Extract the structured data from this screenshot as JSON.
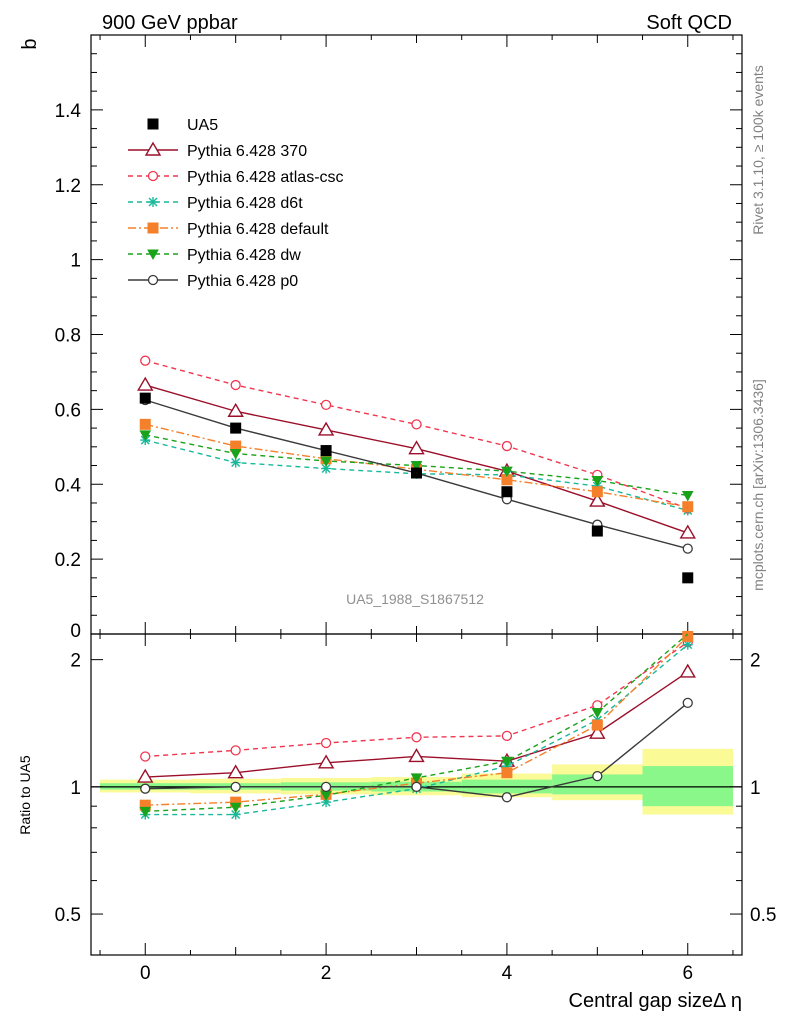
{
  "header": {
    "left": "900 GeV ppbar",
    "right": "Soft QCD"
  },
  "side_labels": {
    "rivet": "Rivet 3.1.10, ≥ 100k events",
    "mcplots": "mcplots.cern.ch [arXiv:1306.3436]"
  },
  "analysis_id": "UA5_1988_S1867512",
  "chart_data": [
    {
      "type": "line",
      "title": "",
      "xlabel": "Central gap sizeΔ η",
      "ylabel": "b",
      "xlim": [
        -0.6,
        6.6
      ],
      "ylim": [
        0,
        1.6
      ],
      "x_ticks": [
        0,
        2,
        4,
        6
      ],
      "y_ticks": [
        0.2,
        0.4,
        0.6,
        0.8,
        1,
        1.2,
        1.4
      ],
      "y_tick_labels": [
        "0.2",
        "0.4",
        "0.6",
        "0.8",
        "1",
        "1.2",
        "1.4"
      ],
      "y_zero_label": "0",
      "legend_position": "top-left",
      "x": [
        0,
        1,
        2,
        3,
        4,
        5,
        6
      ],
      "series": [
        {
          "name": "UA5",
          "color": "#000000",
          "marker": "square-filled",
          "line": "none",
          "values": [
            0.63,
            0.55,
            0.49,
            0.43,
            0.38,
            0.275,
            0.15
          ]
        },
        {
          "name": "Pythia 6.428 370",
          "color": "#9b0f2a",
          "marker": "triangle-open",
          "line": "solid",
          "values": [
            0.665,
            0.595,
            0.545,
            0.495,
            0.435,
            0.355,
            0.27
          ]
        },
        {
          "name": "Pythia 6.428 atlas-csc",
          "color": "#f0364f",
          "marker": "circle-open",
          "line": "dashed",
          "values": [
            0.73,
            0.665,
            0.612,
            0.56,
            0.502,
            0.425,
            0.335
          ]
        },
        {
          "name": "Pythia 6.428 d6t",
          "color": "#17b99a",
          "marker": "star",
          "line": "dashed",
          "values": [
            0.518,
            0.458,
            0.442,
            0.428,
            0.425,
            0.395,
            0.33
          ]
        },
        {
          "name": "Pythia 6.428 default",
          "color": "#f5802b",
          "marker": "square-filled",
          "line": "dashdot",
          "values": [
            0.56,
            0.502,
            0.468,
            0.44,
            0.412,
            0.38,
            0.34
          ]
        },
        {
          "name": "Pythia 6.428 dw",
          "color": "#1aa21a",
          "marker": "triangle-down-filled",
          "line": "dashed",
          "values": [
            0.532,
            0.482,
            0.462,
            0.45,
            0.435,
            0.41,
            0.37
          ]
        },
        {
          "name": "Pythia 6.428 p0",
          "color": "#3a3a3a",
          "marker": "circle-open",
          "line": "solid",
          "values": [
            0.625,
            0.55,
            0.49,
            0.43,
            0.36,
            0.292,
            0.228
          ]
        }
      ]
    },
    {
      "type": "line",
      "title": "",
      "xlabel": "Central gap sizeΔ η",
      "ylabel": "Ratio to UA5",
      "scale": "log",
      "xlim": [
        -0.6,
        6.6
      ],
      "ylim": [
        0.4,
        2.3
      ],
      "y_ticks": [
        0.5,
        1,
        2
      ],
      "y_tick_labels": [
        "0.5",
        "1",
        "2"
      ],
      "reference_line": 1,
      "uncertainty_bands": {
        "bins": [
          [
            -0.5,
            0.5
          ],
          [
            0.5,
            1.5
          ],
          [
            1.5,
            2.5
          ],
          [
            2.5,
            3.5
          ],
          [
            3.5,
            4.5
          ],
          [
            4.5,
            5.5
          ],
          [
            5.5,
            6.5
          ]
        ],
        "stat": [
          [
            0.985,
            1.02
          ],
          [
            0.985,
            1.02
          ],
          [
            0.98,
            1.025
          ],
          [
            0.975,
            1.028
          ],
          [
            0.965,
            1.04
          ],
          [
            0.96,
            1.07
          ],
          [
            0.9,
            1.12
          ]
        ],
        "total": [
          [
            0.97,
            1.04
          ],
          [
            0.965,
            1.045
          ],
          [
            0.96,
            1.05
          ],
          [
            0.955,
            1.055
          ],
          [
            0.945,
            1.075
          ],
          [
            0.93,
            1.13
          ],
          [
            0.86,
            1.23
          ]
        ],
        "stat_color": "#8af78a",
        "total_color": "#fafa96"
      },
      "x": [
        0,
        1,
        2,
        3,
        4,
        5,
        6
      ],
      "series": [
        {
          "name": "Pythia 6.428 370",
          "values": [
            1.055,
            1.08,
            1.14,
            1.18,
            1.15,
            1.34,
            1.87
          ]
        },
        {
          "name": "Pythia 6.428 atlas-csc",
          "values": [
            1.18,
            1.22,
            1.27,
            1.31,
            1.32,
            1.56,
            2.2
          ]
        },
        {
          "name": "Pythia 6.428 d6t",
          "values": [
            0.86,
            0.86,
            0.92,
            0.99,
            1.12,
            1.44,
            2.17
          ]
        },
        {
          "name": "Pythia 6.428 default",
          "values": [
            0.905,
            0.92,
            0.96,
            1.02,
            1.08,
            1.4,
            2.27
          ]
        },
        {
          "name": "Pythia 6.428 dw",
          "values": [
            0.875,
            0.895,
            0.955,
            1.05,
            1.15,
            1.5,
            2.35
          ]
        },
        {
          "name": "Pythia 6.428 p0",
          "values": [
            0.99,
            1.0,
            1.0,
            1.0,
            0.945,
            1.06,
            1.58
          ]
        }
      ]
    }
  ]
}
